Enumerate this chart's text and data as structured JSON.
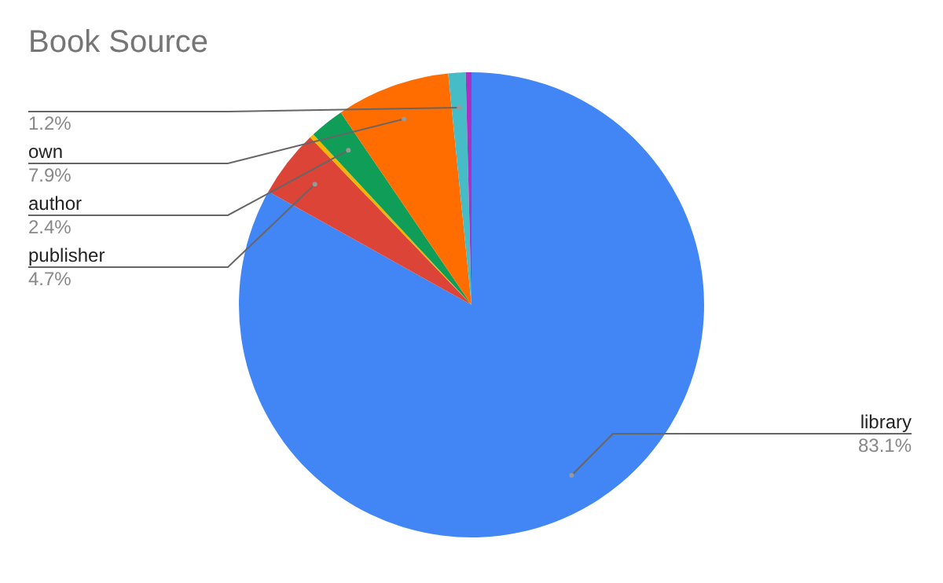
{
  "chart_data": {
    "type": "pie",
    "title": "Book Source",
    "categories": [
      "library",
      "publisher",
      null,
      "author",
      "own",
      null,
      null
    ],
    "values": [
      83.1,
      4.7,
      0.3,
      2.4,
      7.9,
      1.2,
      0.4
    ],
    "value_labels": [
      "83.1%",
      "4.7%",
      null,
      "2.4%",
      "7.9%",
      "1.2%",
      null
    ],
    "colors": [
      "#4285f4",
      "#db4437",
      "#f4b400",
      "#0f9d58",
      "#ff6d01",
      "#46bdc6",
      "#ab30c4"
    ],
    "legend": false
  }
}
